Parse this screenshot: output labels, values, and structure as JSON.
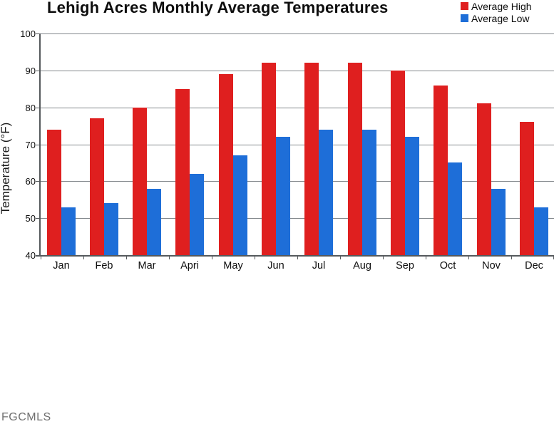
{
  "watermark": "FGCMLS",
  "chart_data": {
    "type": "bar",
    "title": "Lehigh Acres Monthly Average Temperatures",
    "categories": [
      "Jan",
      "Feb",
      "Mar",
      "Apri",
      "May",
      "Jun",
      "Jul",
      "Aug",
      "Sep",
      "Oct",
      "Nov",
      "Dec"
    ],
    "series": [
      {
        "name": "Average High",
        "color": "#df1f1f",
        "values": [
          74,
          77,
          80,
          85,
          89,
          92,
          92,
          92,
          90,
          86,
          81,
          76
        ]
      },
      {
        "name": "Average Low",
        "color": "#1e6ed8",
        "values": [
          53,
          54,
          58,
          62,
          67,
          72,
          74,
          74,
          72,
          65,
          58,
          53
        ]
      }
    ],
    "xlabel": "",
    "ylabel": "Temperature (°F)",
    "ylim": [
      40,
      100
    ],
    "ytick_step": 10,
    "grid": true,
    "grid_color": "#83888c",
    "axis_color": "#55595c",
    "legend_position": "top-right"
  }
}
